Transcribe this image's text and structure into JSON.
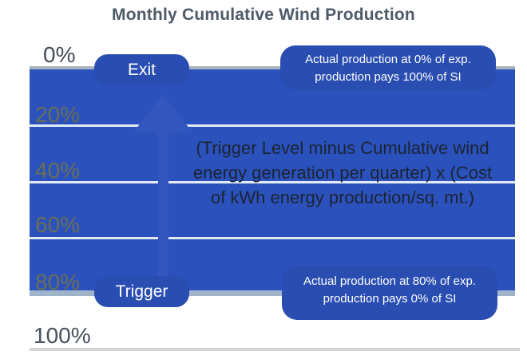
{
  "title": "Monthly Cumulative Wind Production",
  "axis": {
    "labels": [
      "0%",
      "20%",
      "40%",
      "60%",
      "80%",
      "100%"
    ]
  },
  "badges": {
    "exit": "Exit",
    "trigger": "Trigger"
  },
  "annotations": {
    "top": {
      "line1": "Actual production at 0% of exp.",
      "line2": "production pays 100% of SI"
    },
    "bottom": {
      "line1": "Actual production at 80% of exp.",
      "line2": "production pays 0% of SI"
    }
  },
  "formula": {
    "line1": "(Trigger Level minus Cumulative wind",
    "line2": "energy generation per quarter) x (Cost",
    "line3": "of kWh energy production/sq. mt.)"
  },
  "colors": {
    "band_blue": "#2b52bc",
    "badge_blue": "#294db1",
    "arrow_blue": "#3356be",
    "zero_line_gray": "#a8b3c0",
    "gridline_white": "#e4eaf3",
    "band_80_steel": "#9fb3cb",
    "line_100_gray": "#d4d4d4",
    "title_text": "#4e5a68",
    "formula_text": "#1b2433",
    "label_olive": "#6a6e55",
    "label_dark": "#434b55"
  }
}
